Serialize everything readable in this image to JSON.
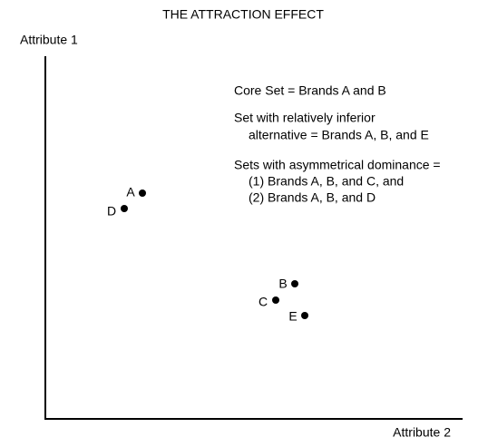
{
  "header": {
    "title": "THE ATTRACTION EFFECT"
  },
  "axes": {
    "y_label": "Attribute 1",
    "x_label": "Attribute 2"
  },
  "points": [
    {
      "label": "A"
    },
    {
      "label": "D"
    },
    {
      "label": "B"
    },
    {
      "label": "C"
    },
    {
      "label": "E"
    }
  ],
  "notes": [
    "Core Set = Brands A and B",
    "Set with relatively inferior",
    "alternative = Brands A, B, and E",
    "Sets with asymmetrical dominance =",
    "(1) Brands A, B, and C, and",
    "(2) Brands A, B, and D"
  ]
}
